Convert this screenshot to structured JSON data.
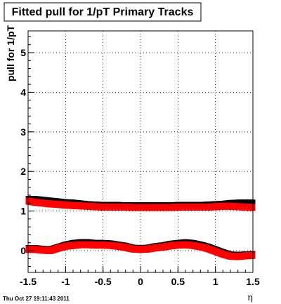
{
  "canvas": {
    "title": "Fitted pull for 1/pT  Primary Tracks",
    "timestamp": "Thu Oct 27 19:11:43 2011"
  },
  "chart_data": {
    "type": "scatter",
    "title": "Fitted pull for 1/pT  Primary Tracks",
    "xlabel": "η",
    "ylabel": "pull for 1/pT",
    "xlim": [
      -1.5,
      1.5
    ],
    "ylim": [
      -0.55,
      5.55
    ],
    "x_ticks": [
      -1.5,
      -1,
      -0.5,
      0,
      0.5,
      1,
      1.5
    ],
    "x_tick_labels": [
      "-1.5",
      "-1",
      "-0.5",
      "0",
      "0.5",
      "1",
      "1.5"
    ],
    "y_ticks": [
      0,
      1,
      2,
      3,
      4,
      5
    ],
    "y_tick_labels": [
      "0",
      "1",
      "2",
      "3",
      "4",
      "5"
    ],
    "grid": true,
    "series": [
      {
        "color": "#000000",
        "x": [
          -1.5,
          -1.4,
          -1.3,
          -1.2,
          -1.1,
          -1.0,
          -0.9,
          -0.8,
          -0.7,
          -0.6,
          -0.5,
          -0.4,
          -0.3,
          -0.2,
          -0.1,
          0.0,
          0.1,
          0.2,
          0.3,
          0.4,
          0.5,
          0.6,
          0.7,
          0.8,
          0.9,
          1.0,
          1.1,
          1.2,
          1.3,
          1.4,
          1.5
        ],
        "y": [
          1.29,
          1.29,
          1.27,
          1.25,
          1.23,
          1.21,
          1.2,
          1.18,
          1.16,
          1.15,
          1.14,
          1.14,
          1.14,
          1.13,
          1.13,
          1.13,
          1.13,
          1.13,
          1.13,
          1.13,
          1.14,
          1.14,
          1.14,
          1.14,
          1.15,
          1.16,
          1.17,
          1.19,
          1.2,
          1.2,
          1.2
        ]
      },
      {
        "color": "#ff0000",
        "x": [
          -1.5,
          -1.4,
          -1.3,
          -1.2,
          -1.1,
          -1.0,
          -0.9,
          -0.8,
          -0.7,
          -0.6,
          -0.5,
          -0.4,
          -0.3,
          -0.2,
          -0.1,
          0.0,
          0.1,
          0.2,
          0.3,
          0.4,
          0.5,
          0.6,
          0.7,
          0.8,
          0.9,
          1.0,
          1.1,
          1.2,
          1.3,
          1.4,
          1.5
        ],
        "y": [
          1.25,
          1.22,
          1.2,
          1.18,
          1.17,
          1.15,
          1.14,
          1.13,
          1.12,
          1.11,
          1.1,
          1.1,
          1.1,
          1.1,
          1.09,
          1.09,
          1.09,
          1.09,
          1.09,
          1.09,
          1.1,
          1.1,
          1.1,
          1.1,
          1.1,
          1.11,
          1.12,
          1.12,
          1.11,
          1.1,
          1.09
        ]
      },
      {
        "color": "#000000",
        "x": [
          -1.5,
          -1.4,
          -1.3,
          -1.2,
          -1.1,
          -1.0,
          -0.9,
          -0.8,
          -0.7,
          -0.6,
          -0.5,
          -0.4,
          -0.3,
          -0.2,
          -0.1,
          0.0,
          0.1,
          0.2,
          0.3,
          0.4,
          0.5,
          0.6,
          0.7,
          0.8,
          0.9,
          1.0,
          1.1,
          1.2,
          1.3,
          1.4,
          1.5
        ],
        "y": [
          0.05,
          0.05,
          0.03,
          0.02,
          0.08,
          0.14,
          0.18,
          0.2,
          0.2,
          0.18,
          0.18,
          0.17,
          0.14,
          0.11,
          0.06,
          0.05,
          0.06,
          0.1,
          0.12,
          0.16,
          0.18,
          0.2,
          0.18,
          0.14,
          0.09,
          0.02,
          -0.05,
          -0.11,
          -0.12,
          -0.11,
          -0.1
        ]
      },
      {
        "color": "#ff0000",
        "x": [
          -1.5,
          -1.4,
          -1.3,
          -1.2,
          -1.1,
          -1.0,
          -0.9,
          -0.8,
          -0.7,
          -0.6,
          -0.5,
          -0.4,
          -0.3,
          -0.2,
          -0.1,
          0.0,
          0.1,
          0.2,
          0.3,
          0.4,
          0.5,
          0.6,
          0.7,
          0.8,
          0.9,
          1.0,
          1.1,
          1.2,
          1.3,
          1.4,
          1.5
        ],
        "y": [
          0.03,
          0.03,
          0.01,
          0.0,
          0.06,
          0.11,
          0.13,
          0.15,
          0.15,
          0.14,
          0.14,
          0.13,
          0.11,
          0.08,
          0.04,
          0.03,
          0.04,
          0.07,
          0.09,
          0.12,
          0.14,
          0.15,
          0.13,
          0.1,
          0.05,
          -0.02,
          -0.09,
          -0.14,
          -0.15,
          -0.13,
          -0.12
        ]
      }
    ]
  }
}
